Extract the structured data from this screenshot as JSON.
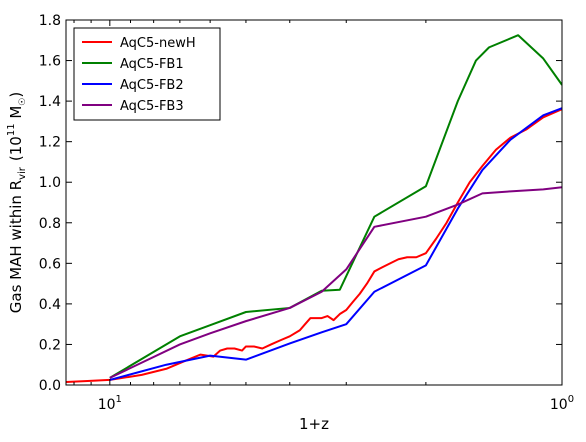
{
  "chart_data": {
    "type": "line",
    "xlabel": "1+z",
    "ylabel": "Gas MAH within R",
    "ylabel_sub": "vir",
    "ylabel_unit": "(10",
    "ylabel_exp": "11",
    "ylabel_unit2": " M",
    "ylabel_sun": "☉",
    "ylabel_close": ")",
    "x_scale": "log-reversed",
    "xlim": [
      12.5,
      1.0
    ],
    "ylim": [
      0,
      1.8
    ],
    "x_ticks": [
      {
        "value": 10,
        "label": "10",
        "sup": "1"
      },
      {
        "value": 1,
        "label": "10",
        "sup": "0"
      }
    ],
    "y_ticks": [
      {
        "value": 0.0,
        "label": "0.0"
      },
      {
        "value": 0.2,
        "label": "0.2"
      },
      {
        "value": 0.4,
        "label": "0.4"
      },
      {
        "value": 0.6,
        "label": "0.6"
      },
      {
        "value": 0.8,
        "label": "0.8"
      },
      {
        "value": 1.0,
        "label": "1.0"
      },
      {
        "value": 1.2,
        "label": "1.2"
      },
      {
        "value": 1.4,
        "label": "1.4"
      },
      {
        "value": 1.6,
        "label": "1.6"
      },
      {
        "value": 1.8,
        "label": "1.8"
      }
    ],
    "grid": false,
    "legend_position": "top-left",
    "series": [
      {
        "name": "AqC5-newH",
        "color": "#ff0000",
        "points": [
          [
            12.5,
            0.015
          ],
          [
            11.2,
            0.02
          ],
          [
            10.0,
            0.025
          ],
          [
            8.5,
            0.05
          ],
          [
            7.5,
            0.08
          ],
          [
            6.8,
            0.12
          ],
          [
            6.3,
            0.15
          ],
          [
            5.9,
            0.14
          ],
          [
            5.7,
            0.17
          ],
          [
            5.5,
            0.18
          ],
          [
            5.3,
            0.18
          ],
          [
            5.1,
            0.17
          ],
          [
            5.0,
            0.19
          ],
          [
            4.8,
            0.19
          ],
          [
            4.6,
            0.18
          ],
          [
            4.4,
            0.2
          ],
          [
            4.2,
            0.22
          ],
          [
            4.0,
            0.24
          ],
          [
            3.8,
            0.27
          ],
          [
            3.7,
            0.3
          ],
          [
            3.6,
            0.33
          ],
          [
            3.5,
            0.33
          ],
          [
            3.4,
            0.33
          ],
          [
            3.3,
            0.34
          ],
          [
            3.2,
            0.32
          ],
          [
            3.1,
            0.35
          ],
          [
            3.0,
            0.37
          ],
          [
            2.9,
            0.41
          ],
          [
            2.8,
            0.45
          ],
          [
            2.7,
            0.5
          ],
          [
            2.6,
            0.56
          ],
          [
            2.5,
            0.58
          ],
          [
            2.4,
            0.6
          ],
          [
            2.3,
            0.62
          ],
          [
            2.2,
            0.63
          ],
          [
            2.1,
            0.63
          ],
          [
            2.0,
            0.65
          ],
          [
            1.9,
            0.72
          ],
          [
            1.8,
            0.8
          ],
          [
            1.7,
            0.9
          ],
          [
            1.6,
            1.0
          ],
          [
            1.5,
            1.08
          ],
          [
            1.4,
            1.16
          ],
          [
            1.3,
            1.22
          ],
          [
            1.2,
            1.26
          ],
          [
            1.1,
            1.32
          ],
          [
            1.05,
            1.34
          ],
          [
            1.0,
            1.36
          ]
        ]
      },
      {
        "name": "AqC5-FB1",
        "color": "#008000",
        "points": [
          [
            10.0,
            0.035
          ],
          [
            7.0,
            0.24
          ],
          [
            6.0,
            0.295
          ],
          [
            5.0,
            0.36
          ],
          [
            4.0,
            0.38
          ],
          [
            3.4,
            0.465
          ],
          [
            3.1,
            0.47
          ],
          [
            2.6,
            0.83
          ],
          [
            2.0,
            0.98
          ],
          [
            1.7,
            1.4
          ],
          [
            1.55,
            1.6
          ],
          [
            1.45,
            1.665
          ],
          [
            1.25,
            1.725
          ],
          [
            1.1,
            1.61
          ],
          [
            1.0,
            1.48
          ]
        ]
      },
      {
        "name": "AqC5-FB2",
        "color": "#0000ff",
        "points": [
          [
            10.0,
            0.025
          ],
          [
            7.5,
            0.1
          ],
          [
            6.0,
            0.145
          ],
          [
            5.0,
            0.125
          ],
          [
            4.0,
            0.205
          ],
          [
            3.4,
            0.26
          ],
          [
            3.0,
            0.3
          ],
          [
            2.6,
            0.46
          ],
          [
            2.0,
            0.59
          ],
          [
            1.7,
            0.87
          ],
          [
            1.5,
            1.06
          ],
          [
            1.3,
            1.21
          ],
          [
            1.1,
            1.33
          ],
          [
            1.0,
            1.365
          ]
        ]
      },
      {
        "name": "AqC5-FB3",
        "color": "#800080",
        "points": [
          [
            10.0,
            0.035
          ],
          [
            7.0,
            0.2
          ],
          [
            6.0,
            0.255
          ],
          [
            5.0,
            0.315
          ],
          [
            4.0,
            0.38
          ],
          [
            3.4,
            0.46
          ],
          [
            3.0,
            0.57
          ],
          [
            2.6,
            0.78
          ],
          [
            2.0,
            0.83
          ],
          [
            1.7,
            0.89
          ],
          [
            1.5,
            0.945
          ],
          [
            1.3,
            0.955
          ],
          [
            1.1,
            0.965
          ],
          [
            1.0,
            0.975
          ]
        ]
      }
    ]
  }
}
